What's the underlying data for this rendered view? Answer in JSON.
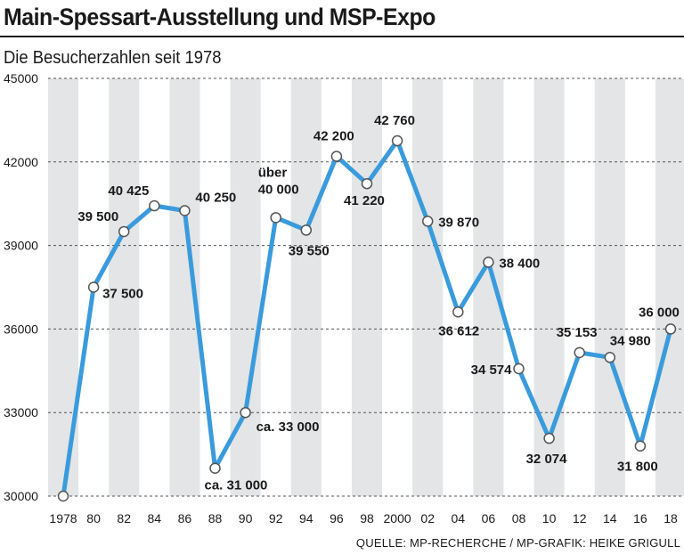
{
  "chart_data": {
    "type": "line",
    "title": "Main-Spessart-Ausstellung und MSP-Expo",
    "subtitle": "Die Besucherzahlen seit 1978",
    "source": "QUELLE: MP-RECHERCHE / MP-GRAFIK: HEIKE GRIGULL",
    "xlabel": "",
    "ylabel": "",
    "ylim": [
      30000,
      45000
    ],
    "yticks": [
      30000,
      33000,
      36000,
      39000,
      42000,
      45000
    ],
    "ytick_labels": [
      "30000",
      "33000",
      "36000",
      "39000",
      "42000",
      "45000"
    ],
    "x_labels": [
      "1978",
      "80",
      "82",
      "84",
      "86",
      "88",
      "90",
      "92",
      "94",
      "96",
      "98",
      "2000",
      "02",
      "04",
      "06",
      "08",
      "10",
      "12",
      "14",
      "16",
      "18"
    ],
    "line_color": "#3a9bdc",
    "band_color": "#e3e5e6",
    "grid": true,
    "series": [
      {
        "name": "Besucher",
        "points": [
          {
            "year": 1978,
            "value": 30000,
            "label": ""
          },
          {
            "year": 1980,
            "value": 37500,
            "label": "37 500"
          },
          {
            "year": 1982,
            "value": 39500,
            "label": "39 500"
          },
          {
            "year": 1984,
            "value": 40425,
            "label": "40 425"
          },
          {
            "year": 1986,
            "value": 40250,
            "label": "40 250"
          },
          {
            "year": 1988,
            "value": 31000,
            "label": "ca. 31 000"
          },
          {
            "year": 1990,
            "value": 33000,
            "label": "ca. 33 000"
          },
          {
            "year": 1992,
            "value": 40000,
            "label": "über\n40 000"
          },
          {
            "year": 1994,
            "value": 39550,
            "label": "39 550"
          },
          {
            "year": 1996,
            "value": 42200,
            "label": "42 200"
          },
          {
            "year": 1998,
            "value": 41220,
            "label": "41 220"
          },
          {
            "year": 2000,
            "value": 42760,
            "label": "42 760"
          },
          {
            "year": 2002,
            "value": 39870,
            "label": "39 870"
          },
          {
            "year": 2004,
            "value": 36612,
            "label": "36 612"
          },
          {
            "year": 2006,
            "value": 38400,
            "label": "38 400"
          },
          {
            "year": 2008,
            "value": 34574,
            "label": "34 574"
          },
          {
            "year": 2010,
            "value": 32074,
            "label": "32 074"
          },
          {
            "year": 2012,
            "value": 35153,
            "label": "35 153"
          },
          {
            "year": 2014,
            "value": 34980,
            "label": "34 980"
          },
          {
            "year": 2016,
            "value": 31800,
            "label": "31 800"
          },
          {
            "year": 2018,
            "value": 36000,
            "label": "36 000"
          }
        ]
      }
    ]
  }
}
